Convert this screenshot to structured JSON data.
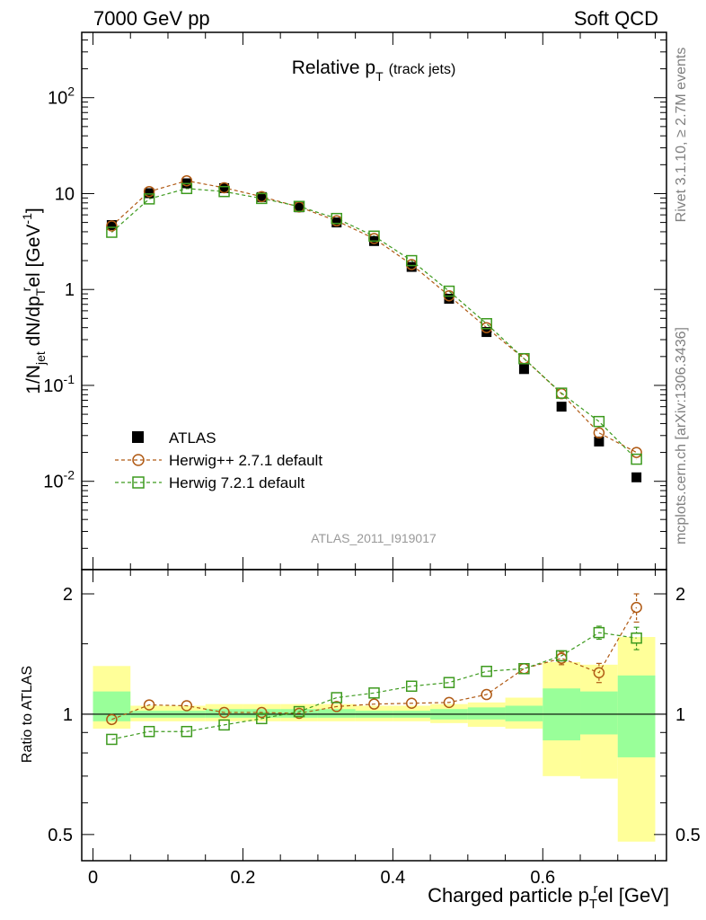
{
  "header": {
    "left": "7000 GeV pp",
    "right": "Soft QCD"
  },
  "side_labels": {
    "rivet": "Rivet 3.1.10, ≥ 2.7M events",
    "mcplots": "mcplots.cern.ch [arXiv:1306.3436]"
  },
  "plot_title": {
    "main": "Relative p",
    "sub": "T",
    "suffix": "(track jets)"
  },
  "analysis_id": "ATLAS_2011_I919017",
  "ylabel_main": {
    "p1": "1/N",
    "s1": "jet",
    "p2": " dN/dp",
    "s2": "T",
    "sup2": "r",
    "p3": "el [GeV",
    "sup3": "-1",
    "p4": "]"
  },
  "ylabel_ratio": "Ratio to ATLAS",
  "xlabel": {
    "p1": "Charged particle p",
    "sub": "T",
    "sup": "r",
    "p2": "el [GeV]"
  },
  "legend": [
    {
      "label": "ATLAS",
      "marker": "filled-square",
      "color": "#000000"
    },
    {
      "label": "Herwig++ 2.7.1 default",
      "marker": "open-circle",
      "color": "#b05a14"
    },
    {
      "label": "Herwig 7.2.1 default",
      "marker": "open-square",
      "color": "#3d9a1e"
    }
  ],
  "colors": {
    "band_outer": "#ffff99",
    "band_inner": "#99ff99",
    "herwigpp": "#b05a14",
    "herwig7": "#3d9a1e",
    "data": "#000000"
  },
  "chart_data": [
    {
      "type": "scatter",
      "title": "Relative pT (track jets)",
      "xlabel": "Charged particle pTrel [GeV]",
      "ylabel": "1/Njet dN/dpTrel [GeV^-1]",
      "log_y": true,
      "xlim": [
        -0.015,
        0.765
      ],
      "ylim": [
        0.0012,
        480
      ],
      "x_ticks": [
        "0",
        "0.2",
        "0.4",
        "0.6"
      ],
      "y_ticks": [
        "10^-2",
        "10^-1",
        "1",
        "10",
        "10^2"
      ],
      "x": [
        0.025,
        0.075,
        0.125,
        0.175,
        0.225,
        0.275,
        0.325,
        0.375,
        0.425,
        0.475,
        0.525,
        0.575,
        0.625,
        0.675,
        0.725
      ],
      "series": [
        {
          "name": "ATLAS",
          "values": [
            4.7,
            10.1,
            12.8,
            11.4,
            9.2,
            7.2,
            5.0,
            3.2,
            1.72,
            0.8,
            0.36,
            0.148,
            0.06,
            0.026,
            0.011
          ]
        },
        {
          "name": "Herwig++ 2.7.1 default",
          "values": [
            4.6,
            10.5,
            13.6,
            11.5,
            9.3,
            7.25,
            5.2,
            3.4,
            1.82,
            0.86,
            0.4,
            0.19,
            0.082,
            0.032,
            0.02
          ]
        },
        {
          "name": "Herwig 7.2.1 default",
          "values": [
            3.95,
            8.8,
            11.3,
            10.5,
            8.9,
            7.35,
            5.5,
            3.6,
            2.0,
            0.96,
            0.44,
            0.19,
            0.083,
            0.042,
            0.017
          ]
        }
      ]
    },
    {
      "type": "scatter",
      "ylabel": "Ratio to ATLAS",
      "xlabel": "Charged particle pTrel [GeV]",
      "xlim": [
        -0.015,
        0.765
      ],
      "ylim": [
        0.43,
        2.3
      ],
      "x_ticks": [
        "0",
        "0.2",
        "0.4",
        "0.6"
      ],
      "y_ticks": [
        "0.5",
        "1",
        "2"
      ],
      "reference": 1,
      "x_edges": [
        0,
        0.05,
        0.1,
        0.15,
        0.2,
        0.25,
        0.3,
        0.35,
        0.4,
        0.45,
        0.5,
        0.55,
        0.6,
        0.65,
        0.7,
        0.75
      ],
      "band_outer": [
        [
          0.92,
          1.32
        ],
        [
          0.96,
          1.05
        ],
        [
          0.96,
          1.05
        ],
        [
          0.96,
          1.06
        ],
        [
          0.96,
          1.06
        ],
        [
          0.96,
          1.06
        ],
        [
          0.96,
          1.06
        ],
        [
          0.96,
          1.05
        ],
        [
          0.96,
          1.05
        ],
        [
          0.95,
          1.06
        ],
        [
          0.93,
          1.07
        ],
        [
          0.92,
          1.1
        ],
        [
          0.7,
          1.35
        ],
        [
          0.69,
          1.33
        ],
        [
          0.48,
          1.56
        ]
      ],
      "band_inner": [
        [
          0.96,
          1.14
        ],
        [
          0.98,
          1.02
        ],
        [
          0.98,
          1.02
        ],
        [
          0.98,
          1.03
        ],
        [
          0.98,
          1.03
        ],
        [
          0.98,
          1.03
        ],
        [
          0.98,
          1.03
        ],
        [
          0.98,
          1.02
        ],
        [
          0.98,
          1.02
        ],
        [
          0.97,
          1.03
        ],
        [
          0.97,
          1.04
        ],
        [
          0.96,
          1.05
        ],
        [
          0.86,
          1.16
        ],
        [
          0.89,
          1.14
        ],
        [
          0.78,
          1.25
        ]
      ],
      "x": [
        0.025,
        0.075,
        0.125,
        0.175,
        0.225,
        0.275,
        0.325,
        0.375,
        0.425,
        0.475,
        0.525,
        0.575,
        0.625,
        0.675,
        0.725
      ],
      "series": [
        {
          "name": "Herwig++ 2.7.1 default",
          "values": [
            0.97,
            1.055,
            1.05,
            1.01,
            1.01,
            1.005,
            1.045,
            1.06,
            1.065,
            1.07,
            1.12,
            1.3,
            1.38,
            1.27,
            1.85
          ],
          "errors": [
            0.01,
            0.01,
            0.01,
            0.01,
            0.01,
            0.01,
            0.01,
            0.01,
            0.01,
            0.01,
            0.01,
            0.02,
            0.05,
            0.07,
            0.15
          ]
        },
        {
          "name": "Herwig 7.2.1 default",
          "values": [
            0.865,
            0.905,
            0.905,
            0.94,
            0.975,
            1.015,
            1.1,
            1.13,
            1.175,
            1.2,
            1.28,
            1.3,
            1.4,
            1.6,
            1.55
          ],
          "errors": [
            0.01,
            0.01,
            0.01,
            0.01,
            0.01,
            0.01,
            0.01,
            0.01,
            0.01,
            0.01,
            0.01,
            0.02,
            0.04,
            0.06,
            0.1
          ]
        }
      ]
    }
  ]
}
